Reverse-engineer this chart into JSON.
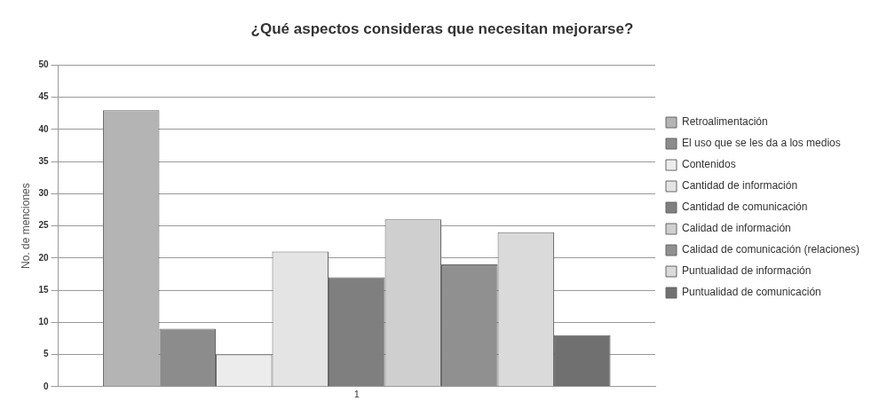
{
  "chart_data": {
    "type": "bar",
    "title": "¿Qué aspectos consideras que necesitan mejorarse?",
    "ylabel": "No. de menciones",
    "categories": [
      "1"
    ],
    "series": [
      {
        "name": "Retroalimentación",
        "color": "#b4b4b4",
        "values": [
          43
        ]
      },
      {
        "name": "El uso que se les da a los medios",
        "color": "#8c8c8c",
        "values": [
          9
        ]
      },
      {
        "name": "Contenidos",
        "color": "#ececec",
        "values": [
          5
        ]
      },
      {
        "name": "Cantidad de información",
        "color": "#e4e4e4",
        "values": [
          21
        ]
      },
      {
        "name": "Cantidad de comunicación",
        "color": "#7f7f7f",
        "values": [
          17
        ]
      },
      {
        "name": "Calidad de información",
        "color": "#cfcfcf",
        "values": [
          26
        ]
      },
      {
        "name": "Calidad de comunicación (relaciones)",
        "color": "#909090",
        "values": [
          19
        ]
      },
      {
        "name": "Puntualidad de información",
        "color": "#dadada",
        "values": [
          24
        ]
      },
      {
        "name": "Puntualidad de comunicación",
        "color": "#707070",
        "values": [
          8
        ]
      }
    ],
    "ylim": [
      0,
      50
    ],
    "yticks": [
      0,
      5,
      10,
      15,
      20,
      25,
      30,
      35,
      40,
      45,
      50
    ],
    "grid": "y",
    "legend": "right"
  }
}
